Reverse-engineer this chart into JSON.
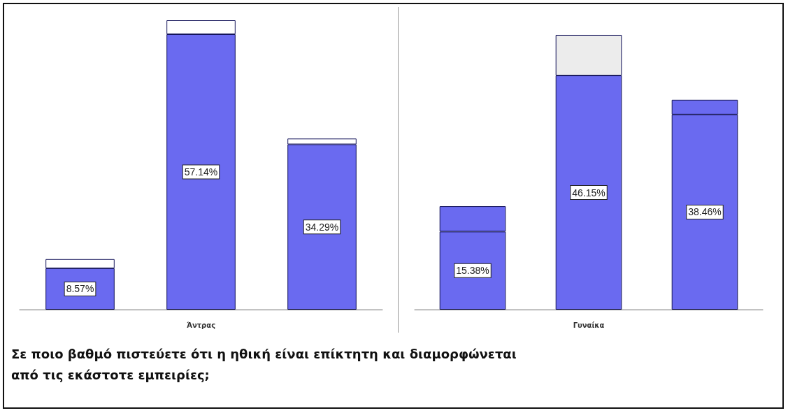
{
  "chart_data": [
    {
      "type": "bar",
      "stacked": true,
      "tick_labels": false,
      "xlabel": "Άντρας",
      "title": "Σε ποιο βαθμό πιστεύετε ότι η ηθική είναι επίκτητη και διαμορφώνεται από τις εκάστοτε εμπειρίες;",
      "categories": [
        null,
        null,
        null
      ],
      "series": [
        {
          "color": "#6a6af0",
          "values": [
            8.57,
            57.14,
            34.29
          ],
          "value_labels": [
            "8.57%",
            "57.14%",
            "34.29%"
          ]
        },
        {
          "color": "#ffffff",
          "values": [
            1.9,
            2.9,
            1.2
          ]
        }
      ]
    },
    {
      "type": "bar",
      "stacked": true,
      "tick_labels": false,
      "xlabel": "Γυναίκα",
      "categories": [
        null,
        null,
        null
      ],
      "series": [
        {
          "color": "#6a6af0",
          "values": [
            15.38,
            46.15,
            38.46
          ],
          "value_labels": [
            "15.38%",
            "46.15%",
            "38.46%"
          ]
        },
        {
          "color": "#6a6af0",
          "colors": [
            "#6a6af0",
            "#ececec",
            "#6a6af0"
          ],
          "values": [
            5.0,
            8.0,
            2.9
          ]
        }
      ]
    }
  ]
}
